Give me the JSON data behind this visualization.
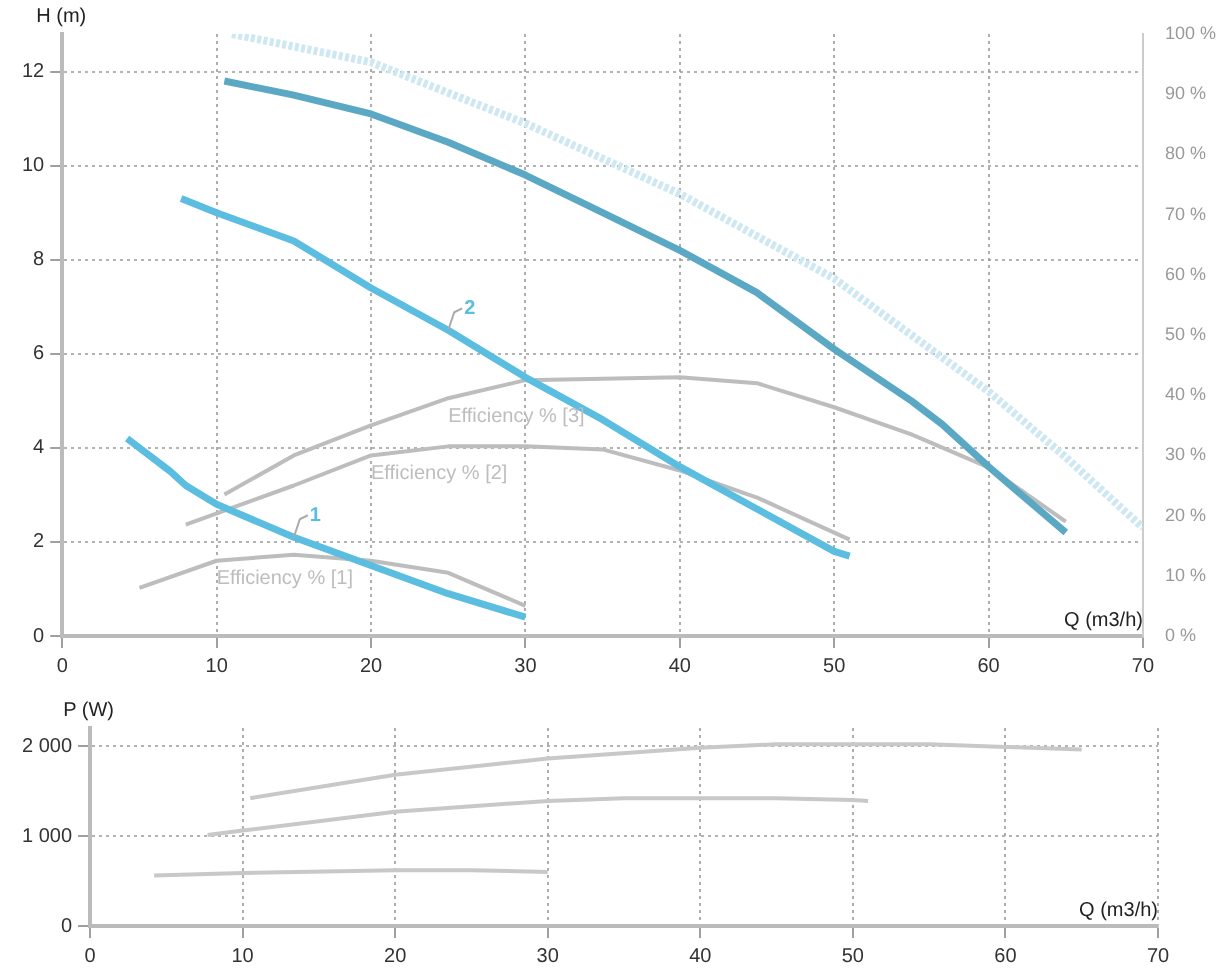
{
  "chart_data": [
    {
      "type": "line",
      "xlabel": "Q (m3/h)",
      "ylabel": "H (m)",
      "xlim": [
        0,
        70
      ],
      "xticks": [
        0,
        10,
        20,
        30,
        40,
        50,
        60,
        70
      ],
      "ylim": [
        0,
        12.8
      ],
      "yticks": [
        0,
        2,
        4,
        6,
        8,
        10,
        12
      ],
      "y2lim": [
        0,
        100
      ],
      "y2ticks": [
        {
          "value": 0,
          "label": "0 %"
        },
        {
          "value": 10,
          "label": "10 %"
        },
        {
          "value": 20,
          "label": "20 %"
        },
        {
          "value": 30,
          "label": "30 %"
        },
        {
          "value": 40,
          "label": "40 %"
        },
        {
          "value": 50,
          "label": "50 %"
        },
        {
          "value": 60,
          "label": "60 %"
        },
        {
          "value": 70,
          "label": "70 %"
        },
        {
          "value": 80,
          "label": "80 %"
        },
        {
          "value": 90,
          "label": "90 %"
        },
        {
          "value": 100,
          "label": "100 %"
        }
      ],
      "grid": true,
      "legend": false,
      "series": [
        {
          "color": "#cde8f3",
          "line_style": "dotted",
          "x": [
            11,
            20,
            30,
            40,
            50,
            60,
            65,
            70
          ],
          "values": [
            12.8,
            12.2,
            10.9,
            9.4,
            7.6,
            5.2,
            3.8,
            2.3
          ]
        },
        {
          "color": "#5aa8c4",
          "x": [
            10.5,
            15,
            20,
            25,
            30,
            35,
            40,
            45,
            50,
            55,
            57,
            60,
            65
          ],
          "values": [
            11.8,
            11.5,
            11.1,
            10.5,
            9.8,
            9.0,
            8.2,
            7.3,
            6.1,
            5.0,
            4.5,
            3.6,
            2.2
          ]
        },
        {
          "name": "2",
          "color": "#5bbde0",
          "x": [
            7.7,
            10,
            15,
            20,
            25,
            30,
            35,
            40,
            45,
            50,
            51
          ],
          "values": [
            9.3,
            9.0,
            8.4,
            7.4,
            6.5,
            5.5,
            4.6,
            3.6,
            2.7,
            1.8,
            1.7
          ]
        },
        {
          "name": "1",
          "color": "#5bbde0",
          "x": [
            4.2,
            7,
            8,
            10,
            15,
            20,
            25,
            30
          ],
          "values": [
            4.2,
            3.5,
            3.2,
            2.8,
            2.1,
            1.5,
            0.9,
            0.4
          ]
        },
        {
          "name": "Efficiency % [1]",
          "color": "#bdbdbd",
          "axis": "y2",
          "x": [
            5,
            10,
            15,
            20,
            25,
            30
          ],
          "values": [
            8,
            12.5,
            13.5,
            12.5,
            10.5,
            5
          ]
        },
        {
          "name": "Efficiency % [2]",
          "color": "#bdbdbd",
          "axis": "y2",
          "x": [
            8,
            15,
            20,
            25,
            30,
            35,
            40,
            45,
            51
          ],
          "values": [
            18.5,
            25,
            30,
            31.5,
            31.5,
            31,
            27.5,
            23,
            16
          ]
        },
        {
          "name": "Efficiency % [3]",
          "color": "#bdbdbd",
          "axis": "y2",
          "x": [
            10.5,
            15,
            20,
            25,
            30,
            40,
            45,
            50,
            55,
            60,
            65
          ],
          "values": [
            23.5,
            30,
            35,
            39.5,
            42.5,
            43,
            42,
            38,
            33.5,
            28,
            19
          ]
        }
      ]
    },
    {
      "type": "line",
      "xlabel": "Q (m3/h)",
      "ylabel": "P (W)",
      "xlim": [
        0,
        70
      ],
      "xticks": [
        0,
        10,
        20,
        30,
        40,
        50,
        60,
        70
      ],
      "ylim": [
        0,
        2200
      ],
      "yticks": [
        0,
        {
          "value": 1000,
          "label": "1 000"
        },
        {
          "value": 2000,
          "label": "2 000"
        }
      ],
      "grid": true,
      "legend": false,
      "series": [
        {
          "color": "#c8c8c8",
          "x": [
            10.5,
            20,
            30,
            40,
            45,
            55,
            60,
            65
          ],
          "values": [
            1420,
            1680,
            1860,
            1980,
            2020,
            2020,
            1990,
            1960
          ]
        },
        {
          "color": "#c8c8c8",
          "x": [
            7.7,
            10,
            20,
            30,
            35,
            45,
            50,
            51
          ],
          "values": [
            1010,
            1060,
            1270,
            1390,
            1420,
            1420,
            1400,
            1390
          ]
        },
        {
          "color": "#c8c8c8",
          "x": [
            4.2,
            10,
            20,
            25,
            30
          ],
          "values": [
            560,
            590,
            620,
            620,
            600
          ]
        }
      ]
    }
  ]
}
